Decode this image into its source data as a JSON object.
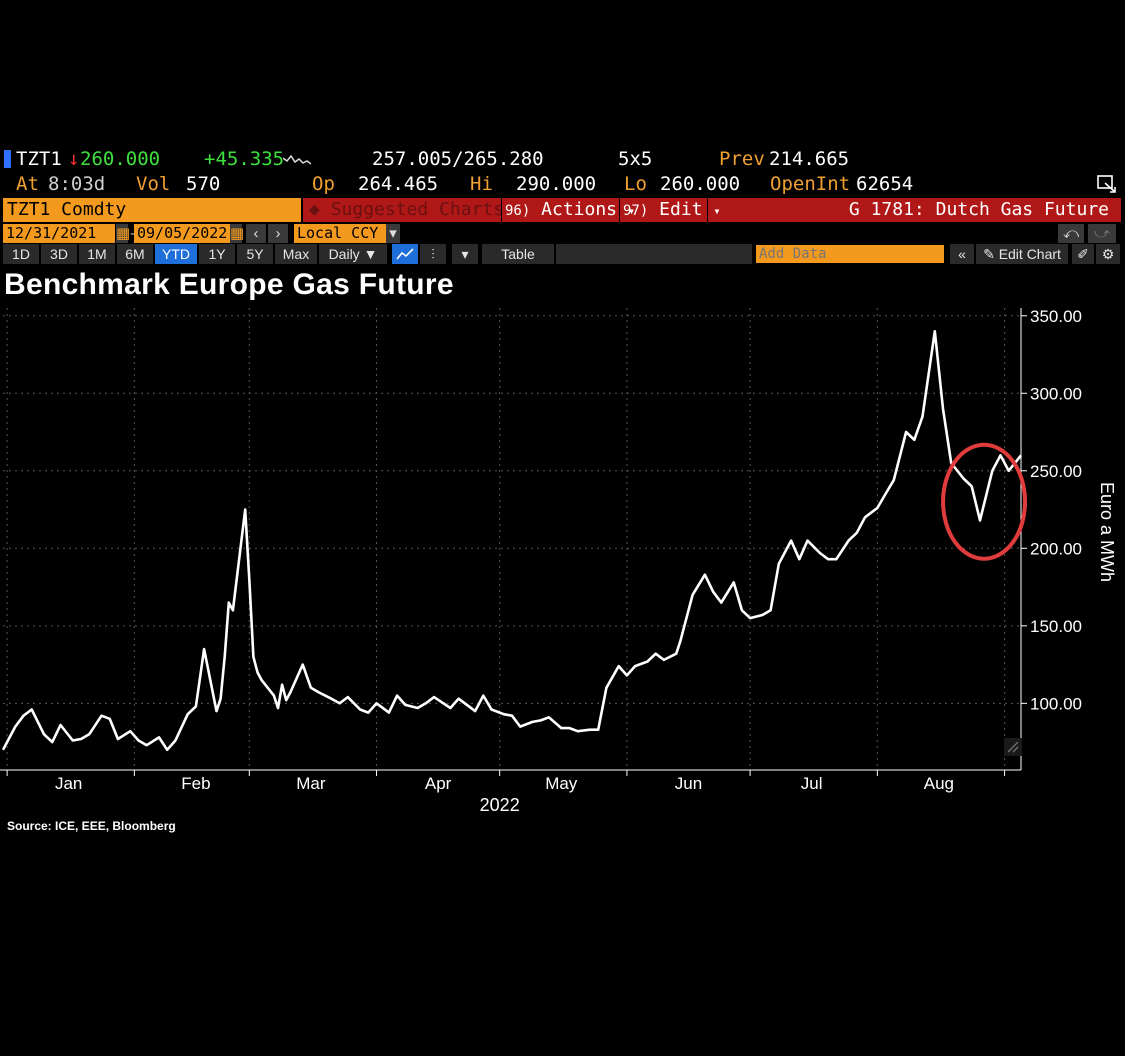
{
  "header": {
    "ticker": "TZT1",
    "arrow": "↓",
    "last_price": "260.000",
    "change": "+45.335",
    "bid_ask": "257.005/265.280",
    "size": "5x5",
    "prev_label": "Prev",
    "prev_value": "214.665",
    "at_label": "At",
    "at_time": "8:03d",
    "vol_label": "Vol",
    "vol_value": "570",
    "op_label": "Op",
    "op_value": "264.465",
    "hi_label": "Hi",
    "hi_value": "290.000",
    "lo_label": "Lo",
    "lo_value": "260.000",
    "openint_label": "OpenInt",
    "openint_value": "62654"
  },
  "toolbar": {
    "security_field": "TZT1 Comdty",
    "suggested_charts": "Suggested Charts",
    "actions_num": "96)",
    "actions_label": "Actions",
    "edit_num": "97)",
    "edit_label": "Edit",
    "chart_name": "G 1781: Dutch Gas Future",
    "start_date": "12/31/2021",
    "end_date": "09/05/2022",
    "currency": "Local CCY",
    "periods": [
      "1D",
      "3D",
      "1M",
      "6M",
      "YTD",
      "1Y",
      "5Y",
      "Max"
    ],
    "active_period": "YTD",
    "frequency": "Daily",
    "table_label": "Table",
    "add_data_placeholder": "Add Data",
    "edit_chart_label": "Edit Chart"
  },
  "chart_data": {
    "type": "line",
    "title": "Benchmark Europe Gas Future",
    "ylabel": "Euro a MWh",
    "xlabel": "2022",
    "source": "Source: ICE, EEE, Bloomberg",
    "ylim": [
      57,
      355
    ],
    "y_ticks": [
      "100.00",
      "150.00",
      "200.00",
      "250.00",
      "300.00",
      "350.00"
    ],
    "months": [
      "Jan",
      "Feb",
      "Mar",
      "Apr",
      "May",
      "Jun",
      "Jul",
      "Aug"
    ],
    "grid": true,
    "line_color": "#ffffff",
    "annotation_color": "#e03c3c",
    "x": [
      "2021-12-31",
      "2022-01-03",
      "2022-01-05",
      "2022-01-07",
      "2022-01-10",
      "2022-01-12",
      "2022-01-14",
      "2022-01-17",
      "2022-01-19",
      "2022-01-21",
      "2022-01-24",
      "2022-01-26",
      "2022-01-28",
      "2022-01-31",
      "2022-02-02",
      "2022-02-04",
      "2022-02-07",
      "2022-02-09",
      "2022-02-11",
      "2022-02-14",
      "2022-02-16",
      "2022-02-18",
      "2022-02-21",
      "2022-02-22",
      "2022-02-23",
      "2022-02-24",
      "2022-02-25",
      "2022-02-28",
      "2022-03-01",
      "2022-03-02",
      "2022-03-03",
      "2022-03-04",
      "2022-03-07",
      "2022-03-08",
      "2022-03-09",
      "2022-03-10",
      "2022-03-11",
      "2022-03-14",
      "2022-03-16",
      "2022-03-18",
      "2022-03-21",
      "2022-03-23",
      "2022-03-25",
      "2022-03-28",
      "2022-03-30",
      "2022-04-01",
      "2022-04-04",
      "2022-04-06",
      "2022-04-08",
      "2022-04-11",
      "2022-04-13",
      "2022-04-15",
      "2022-04-19",
      "2022-04-21",
      "2022-04-25",
      "2022-04-27",
      "2022-04-29",
      "2022-05-02",
      "2022-05-04",
      "2022-05-06",
      "2022-05-09",
      "2022-05-11",
      "2022-05-13",
      "2022-05-16",
      "2022-05-18",
      "2022-05-20",
      "2022-05-23",
      "2022-05-25",
      "2022-05-27",
      "2022-05-30",
      "2022-06-01",
      "2022-06-03",
      "2022-06-06",
      "2022-06-08",
      "2022-06-10",
      "2022-06-13",
      "2022-06-14",
      "2022-06-15",
      "2022-06-16",
      "2022-06-17",
      "2022-06-20",
      "2022-06-22",
      "2022-06-24",
      "2022-06-27",
      "2022-06-29",
      "2022-07-01",
      "2022-07-04",
      "2022-07-06",
      "2022-07-08",
      "2022-07-11",
      "2022-07-13",
      "2022-07-15",
      "2022-07-18",
      "2022-07-20",
      "2022-07-22",
      "2022-07-25",
      "2022-07-27",
      "2022-07-29",
      "2022-08-01",
      "2022-08-03",
      "2022-08-05",
      "2022-08-08",
      "2022-08-10",
      "2022-08-12",
      "2022-08-15",
      "2022-08-17",
      "2022-08-19",
      "2022-08-22",
      "2022-08-24",
      "2022-08-26",
      "2022-08-29",
      "2022-08-31",
      "2022-09-02",
      "2022-09-05"
    ],
    "series": [
      {
        "values": [
          70,
          85,
          92,
          96,
          80,
          75,
          86,
          76,
          77,
          80,
          92,
          90,
          77,
          82,
          76,
          73,
          78,
          70,
          76,
          93,
          98,
          135,
          95,
          103,
          130,
          165,
          160,
          225,
          180,
          130,
          120,
          115,
          105,
          97,
          112,
          102,
          107,
          125,
          110,
          107,
          103,
          100,
          104,
          96,
          94,
          100,
          94,
          105,
          99,
          97,
          100,
          104,
          97,
          103,
          95,
          105,
          96,
          93,
          92,
          85,
          88,
          89,
          91,
          84,
          84,
          82,
          83,
          83,
          110,
          124,
          118,
          124,
          127,
          132,
          128,
          132,
          140,
          150,
          160,
          170,
          183,
          172,
          165,
          178,
          160,
          155,
          157,
          160,
          190,
          205,
          193,
          205,
          197,
          193,
          193,
          205,
          210,
          220,
          226,
          235,
          244,
          275,
          270,
          285,
          340,
          290,
          255,
          245,
          240,
          218,
          250,
          260,
          250,
          260
        ]
      }
    ]
  }
}
